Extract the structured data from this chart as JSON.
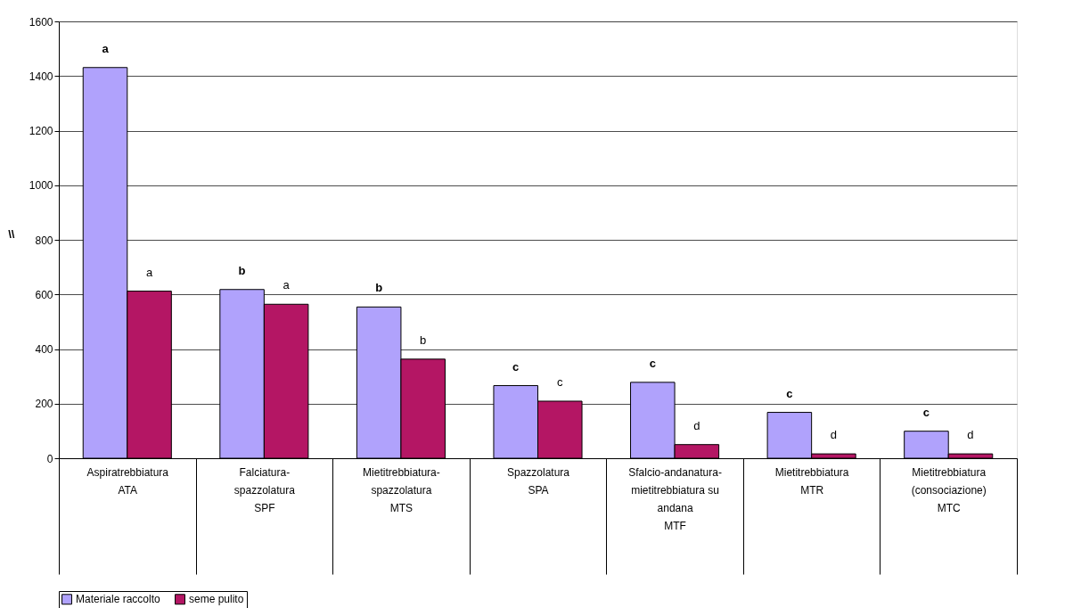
{
  "chart_data": {
    "type": "bar",
    "ylabel": "\\\\",
    "categories": [
      "Aspiratrebbiatura\nATA",
      "Falciatura-\nspazzolatura\nSPF",
      "Mietitrebbiatura-\nspazzolatura\nMTS",
      "Spazzolatura\nSPA",
      "Sfalcio-andanatura-\nmietitrebbiatura su\nandana\nMTF",
      "Mietitrebbiatura\nMTR",
      "Mietitrebbiatura\n(consociazione)\nMTC"
    ],
    "series": [
      {
        "name": "Materiale raccolto",
        "color": "#b0a2fc",
        "values": [
          1431,
          618,
          554,
          266,
          278,
          168,
          99
        ],
        "value_labels": [
          "a",
          "b",
          "b",
          "c",
          "c",
          "c",
          "c"
        ]
      },
      {
        "name": "seme pulito",
        "color": "#b41664",
        "values": [
          612,
          564,
          363,
          209,
          50,
          16,
          16
        ],
        "value_labels": [
          "a",
          "a",
          "b",
          "c",
          "d",
          "d",
          "d"
        ]
      }
    ],
    "ylim": [
      0,
      1600
    ],
    "yticks": [
      0,
      200,
      400,
      600,
      800,
      1000,
      1200,
      1400,
      1600
    ],
    "grid": "y",
    "legend": "bottom"
  }
}
